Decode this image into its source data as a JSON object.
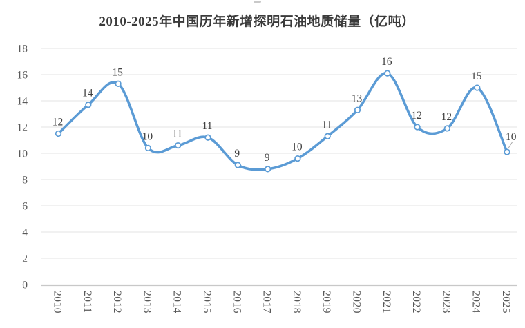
{
  "chart_data": {
    "type": "line",
    "title": "2010-2025年中国历年新增探明石油地质储量（亿吨）",
    "categories": [
      "2010",
      "2011",
      "2012",
      "2013",
      "2014",
      "2015",
      "2016",
      "2017",
      "2018",
      "2019",
      "2020",
      "2021",
      "2022",
      "2023",
      "2024",
      "2025"
    ],
    "values": [
      11.5,
      13.7,
      15.3,
      10.4,
      10.6,
      11.2,
      9.1,
      8.8,
      9.6,
      11.3,
      13.3,
      16.1,
      12.0,
      11.9,
      15.0,
      10.1
    ],
    "point_labels": [
      "12",
      "14",
      "15",
      "10",
      "11",
      "11",
      "9",
      "9",
      "10",
      "11",
      "13",
      "16",
      "12",
      "12",
      "15",
      "10"
    ],
    "xlabel": "",
    "ylabel": "",
    "ylim": [
      0,
      18
    ],
    "yticks": [
      0,
      2,
      4,
      6,
      8,
      10,
      12,
      14,
      16,
      18
    ],
    "grid": true,
    "smooth": true,
    "legend_position": "none",
    "marker_style": "open-circle",
    "colors": {
      "line": "#5B9BD5",
      "marker_fill": "#FFFFFF",
      "marker_stroke": "#5B9BD5",
      "gridline": "#E3E3E3",
      "axis_line": "#C8C8C8",
      "tick_label": "#595959",
      "data_label": "#404040",
      "title": "#3B3B3B",
      "leader_line": "#A6A6A6",
      "background": "#FFFFFF"
    }
  }
}
